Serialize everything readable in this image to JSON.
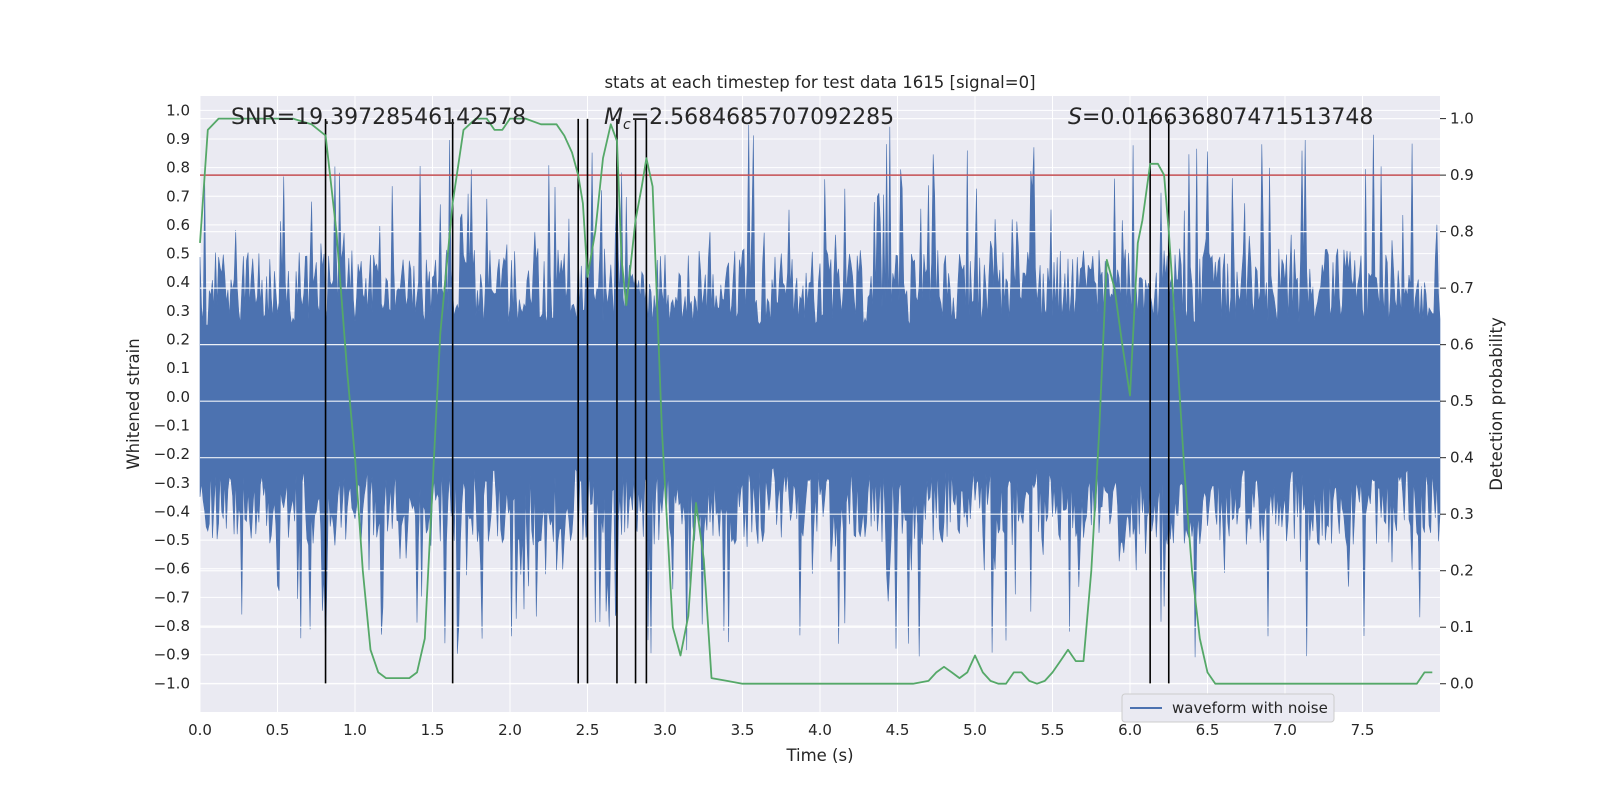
{
  "chart_data": {
    "type": "line",
    "title": "stats at each timestep for test data 1615 [signal=0]",
    "xlabel": "Time (s)",
    "ylabel": "Whitened strain",
    "y2label": "Detection probability",
    "xlim": [
      0.0,
      8.0
    ],
    "ylim": [
      -1.1,
      1.05
    ],
    "y2lim": [
      -0.05,
      1.04
    ],
    "xticks": [
      "0.0",
      "0.5",
      "1.0",
      "1.5",
      "2.0",
      "2.5",
      "3.0",
      "3.5",
      "4.0",
      "4.5",
      "5.0",
      "5.5",
      "6.0",
      "6.5",
      "7.0",
      "7.5"
    ],
    "yticks": [
      "1.0",
      "0.9",
      "0.8",
      "0.7",
      "0.6",
      "0.5",
      "0.4",
      "0.3",
      "0.2",
      "0.1",
      "0.0",
      "-0.1",
      "-0.2",
      "-0.3",
      "-0.4",
      "-0.5",
      "-0.6",
      "-0.7",
      "-0.8",
      "-0.9",
      "-1.0"
    ],
    "y2ticks": [
      "1.0",
      "0.9",
      "0.8",
      "0.7",
      "0.6",
      "0.5",
      "0.4",
      "0.3",
      "0.2",
      "0.1",
      "0.0"
    ],
    "annotations": {
      "snr": "SNR=19.39728546142578",
      "mc": "=2.5684685707092285",
      "mc_symbol": "M",
      "mc_sub": "c",
      "s": "=0.016636807471513748",
      "s_symbol": "S"
    },
    "threshold": 0.9,
    "threshold_color": "#c44e52",
    "trigger_times": [
      0.81,
      1.63,
      2.44,
      2.5,
      2.69,
      2.81,
      2.88,
      6.13,
      6.25
    ],
    "trigger_range": [
      -1.0,
      0.97
    ],
    "series": [
      {
        "name": "waveform with noise",
        "color": "#4c72b0",
        "axis": "left",
        "envelope_points": 800,
        "typical_upper": 0.45,
        "typical_lower": -0.45,
        "peak_upper": 0.95,
        "peak_lower": -0.91
      },
      {
        "name": "detection probability",
        "color": "#55a868",
        "axis": "right",
        "x": [
          0.0,
          0.05,
          0.12,
          0.2,
          0.3,
          0.45,
          0.6,
          0.72,
          0.81,
          0.88,
          0.95,
          1.0,
          1.05,
          1.1,
          1.15,
          1.2,
          1.3,
          1.35,
          1.4,
          1.45,
          1.55,
          1.63,
          1.7,
          1.78,
          1.85,
          1.9,
          1.95,
          2.0,
          2.05,
          2.1,
          2.2,
          2.3,
          2.35,
          2.4,
          2.44,
          2.47,
          2.5,
          2.55,
          2.6,
          2.65,
          2.69,
          2.72,
          2.75,
          2.81,
          2.85,
          2.88,
          2.92,
          2.98,
          3.05,
          3.1,
          3.15,
          3.2,
          3.25,
          3.3,
          3.4,
          3.5,
          3.6,
          3.8,
          4.0,
          4.2,
          4.4,
          4.6,
          4.7,
          4.75,
          4.8,
          4.85,
          4.9,
          4.95,
          5.0,
          5.05,
          5.1,
          5.15,
          5.2,
          5.25,
          5.3,
          5.35,
          5.4,
          5.45,
          5.5,
          5.55,
          5.6,
          5.65,
          5.7,
          5.75,
          5.8,
          5.85,
          5.9,
          5.95,
          6.0,
          6.05,
          6.08,
          6.13,
          6.18,
          6.22,
          6.25,
          6.3,
          6.35,
          6.4,
          6.45,
          6.5,
          6.55,
          6.6,
          6.7,
          6.8,
          7.0,
          7.2,
          7.4,
          7.6,
          7.8,
          7.85,
          7.9,
          7.95
        ],
        "y": [
          0.78,
          0.98,
          1.0,
          1.0,
          1.0,
          1.0,
          1.0,
          0.99,
          0.97,
          0.8,
          0.55,
          0.4,
          0.2,
          0.06,
          0.02,
          0.01,
          0.01,
          0.01,
          0.02,
          0.08,
          0.62,
          0.85,
          0.98,
          1.0,
          1.0,
          0.98,
          0.98,
          1.0,
          1.0,
          1.0,
          0.99,
          0.99,
          0.97,
          0.94,
          0.9,
          0.85,
          0.72,
          0.8,
          0.93,
          0.99,
          0.96,
          0.75,
          0.67,
          0.82,
          0.88,
          0.93,
          0.88,
          0.45,
          0.1,
          0.05,
          0.12,
          0.32,
          0.22,
          0.01,
          0.005,
          0.0,
          0.0,
          0.0,
          0.0,
          0.0,
          0.0,
          0.0,
          0.005,
          0.02,
          0.03,
          0.02,
          0.01,
          0.02,
          0.05,
          0.02,
          0.005,
          0.0,
          0.0,
          0.02,
          0.02,
          0.005,
          0.0,
          0.005,
          0.02,
          0.04,
          0.06,
          0.04,
          0.04,
          0.2,
          0.44,
          0.75,
          0.7,
          0.6,
          0.51,
          0.78,
          0.82,
          0.92,
          0.92,
          0.9,
          0.8,
          0.6,
          0.38,
          0.2,
          0.08,
          0.02,
          0.0,
          0.0,
          0.0,
          0.0,
          0.0,
          0.0,
          0.0,
          0.0,
          0.0,
          0.0,
          0.02,
          0.02
        ]
      }
    ],
    "legend": {
      "label": "waveform with noise",
      "placement": "bottom-right"
    }
  }
}
